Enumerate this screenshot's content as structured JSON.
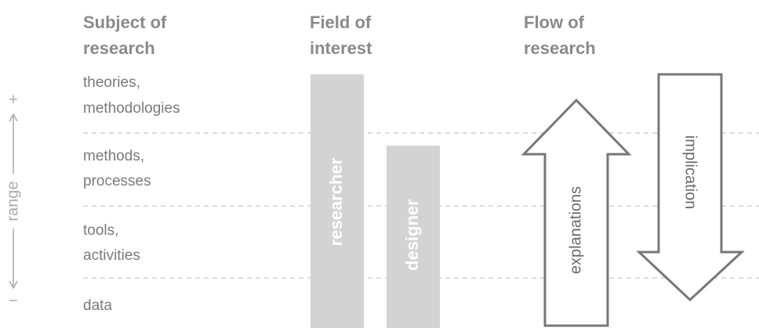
{
  "headers": [
    {
      "lines": [
        "Subject of",
        "research"
      ]
    },
    {
      "lines": [
        "Field of",
        "interest"
      ]
    },
    {
      "lines": [
        "Flow of",
        "research"
      ]
    }
  ],
  "rows": [
    {
      "lines": [
        "theories,",
        "methodologies"
      ]
    },
    {
      "lines": [
        "methods,",
        "processes"
      ]
    },
    {
      "lines": [
        "tools,",
        "activities"
      ]
    },
    {
      "lines": [
        "data"
      ]
    }
  ],
  "axis": {
    "plus": "+",
    "label": "range",
    "minus": "−"
  },
  "bars": [
    "researcher",
    "designer"
  ],
  "arrows": {
    "up": "explanations",
    "down": "implication"
  }
}
